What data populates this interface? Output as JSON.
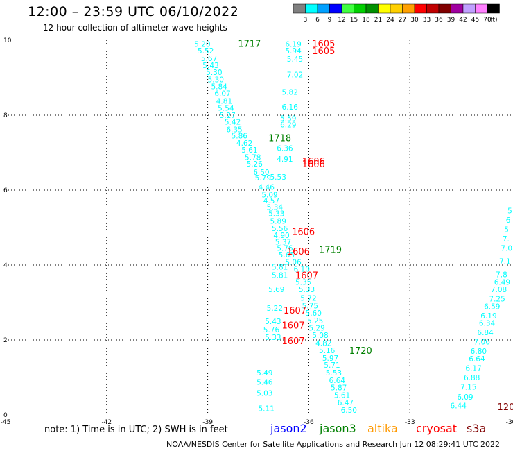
{
  "header": {
    "title": "12:00 – 23:59 UTC 06/10/2022",
    "subtitle": "12 hour collection of altimeter wave heights",
    "colorbar_unit": "(ft)"
  },
  "colorbar": [
    {
      "label": "3",
      "color": "#808080"
    },
    {
      "label": "6",
      "color": "#00ffff"
    },
    {
      "label": "9",
      "color": "#00a0ff"
    },
    {
      "label": "12",
      "color": "#0000ff"
    },
    {
      "label": "15",
      "color": "#40ff40"
    },
    {
      "label": "18",
      "color": "#00d000"
    },
    {
      "label": "21",
      "color": "#009000"
    },
    {
      "label": "24",
      "color": "#ffff00"
    },
    {
      "label": "27",
      "color": "#ffd000"
    },
    {
      "label": "30",
      "color": "#ffa000"
    },
    {
      "label": "33",
      "color": "#ff0000"
    },
    {
      "label": "36",
      "color": "#c00000"
    },
    {
      "label": "39",
      "color": "#800000"
    },
    {
      "label": "42",
      "color": "#a000a0"
    },
    {
      "label": "45",
      "color": "#c0a0ff"
    },
    {
      "label": "70",
      "color": "#ff80ff"
    },
    {
      "label": "",
      "color": "#000000"
    }
  ],
  "footer": {
    "note": "note:  1) Time is in UTC;  2) SWH is in feet",
    "satellites": [
      {
        "name": "jason2",
        "color": "#0000ff"
      },
      {
        "name": "jason3",
        "color": "#008000"
      },
      {
        "name": "altika",
        "color": "#ff9900"
      },
      {
        "name": "cryosat",
        "color": "#ff0000"
      },
      {
        "name": "s3a",
        "color": "#800000"
      }
    ],
    "credit": "NOAA/NESDIS Center for Satellite Applications and Research    Jun 12 08:29:41 UTC 2022"
  },
  "chart_data": {
    "type": "scatter",
    "xlim": [
      -45,
      -30
    ],
    "ylim": [
      0,
      10
    ],
    "xticks": [
      "-45",
      "-42",
      "-39",
      "-36",
      "-33",
      "-30"
    ],
    "yticks": [
      "0",
      "2",
      "4",
      "6",
      "8",
      "10"
    ],
    "grid": true,
    "wave_color": "#00ffff",
    "track_colors": {
      "jason3": "#008000",
      "cryosat": "#ff0000",
      "s3a": "#800000"
    },
    "wave_labels": [
      {
        "x": -39.4,
        "y": 9.9,
        "v": "5.20"
      },
      {
        "x": -39.3,
        "y": 9.72,
        "v": "5.52"
      },
      {
        "x": -39.2,
        "y": 9.52,
        "v": "5.67"
      },
      {
        "x": -39.15,
        "y": 9.33,
        "v": "5.43"
      },
      {
        "x": -39.05,
        "y": 9.15,
        "v": "5.30"
      },
      {
        "x": -39.0,
        "y": 8.95,
        "v": "5.30"
      },
      {
        "x": -38.9,
        "y": 8.77,
        "v": "5.84"
      },
      {
        "x": -38.8,
        "y": 8.58,
        "v": "6.07"
      },
      {
        "x": -38.75,
        "y": 8.38,
        "v": "4.81"
      },
      {
        "x": -38.7,
        "y": 8.19,
        "v": "5.54"
      },
      {
        "x": -38.65,
        "y": 8.0,
        "v": "5.27"
      },
      {
        "x": -38.5,
        "y": 7.82,
        "v": "5.42"
      },
      {
        "x": -38.45,
        "y": 7.62,
        "v": "6.35"
      },
      {
        "x": -38.3,
        "y": 7.45,
        "v": "5.86"
      },
      {
        "x": -38.15,
        "y": 7.26,
        "v": "4.62"
      },
      {
        "x": -38.0,
        "y": 7.07,
        "v": "5.61"
      },
      {
        "x": -37.9,
        "y": 6.88,
        "v": "5.78"
      },
      {
        "x": -37.85,
        "y": 6.7,
        "v": "5.26"
      },
      {
        "x": -37.65,
        "y": 6.48,
        "v": "6.50"
      },
      {
        "x": -37.6,
        "y": 6.33,
        "v": "5.79"
      },
      {
        "x": -37.5,
        "y": 6.08,
        "v": "4.46"
      },
      {
        "x": -37.4,
        "y": 5.88,
        "v": "5.09"
      },
      {
        "x": -37.35,
        "y": 5.72,
        "v": "4.57"
      },
      {
        "x": -37.25,
        "y": 5.55,
        "v": "5.34"
      },
      {
        "x": -37.2,
        "y": 5.38,
        "v": "5.33"
      },
      {
        "x": -37.15,
        "y": 5.18,
        "v": "5.89"
      },
      {
        "x": -37.1,
        "y": 4.98,
        "v": "5.56"
      },
      {
        "x": -37.05,
        "y": 4.8,
        "v": "4.90"
      },
      {
        "x": -37.0,
        "y": 4.62,
        "v": "5.37"
      },
      {
        "x": -36.95,
        "y": 4.45,
        "v": "5.76"
      },
      {
        "x": -36.9,
        "y": 4.28,
        "v": "5.65"
      },
      {
        "x": -36.7,
        "y": 4.08,
        "v": "5.06"
      },
      {
        "x": -37.1,
        "y": 3.95,
        "v": "5.81"
      },
      {
        "x": -37.1,
        "y": 3.73,
        "v": "5.81"
      },
      {
        "x": -36.45,
        "y": 3.9,
        "v": "6.10"
      },
      {
        "x": -36.4,
        "y": 3.55,
        "v": "5.35"
      },
      {
        "x": -36.3,
        "y": 3.35,
        "v": "5.33"
      },
      {
        "x": -37.2,
        "y": 3.35,
        "v": "5.69"
      },
      {
        "x": -36.25,
        "y": 3.12,
        "v": "5.72"
      },
      {
        "x": -36.2,
        "y": 2.92,
        "v": "5.75"
      },
      {
        "x": -36.1,
        "y": 2.72,
        "v": "5.60"
      },
      {
        "x": -36.05,
        "y": 2.52,
        "v": "5.25"
      },
      {
        "x": -36.0,
        "y": 2.32,
        "v": "5.29"
      },
      {
        "x": -35.9,
        "y": 2.13,
        "v": "5.08"
      },
      {
        "x": -37.25,
        "y": 2.85,
        "v": "5.22"
      },
      {
        "x": -37.3,
        "y": 2.5,
        "v": "5.43"
      },
      {
        "x": -37.35,
        "y": 2.28,
        "v": "5.76"
      },
      {
        "x": -37.3,
        "y": 2.07,
        "v": "5.33"
      },
      {
        "x": -35.8,
        "y": 1.92,
        "v": "4.82"
      },
      {
        "x": -35.7,
        "y": 1.72,
        "v": "5.16"
      },
      {
        "x": -35.6,
        "y": 1.52,
        "v": "5.97"
      },
      {
        "x": -35.55,
        "y": 1.33,
        "v": "5.71"
      },
      {
        "x": -35.5,
        "y": 1.13,
        "v": "5.53"
      },
      {
        "x": -35.4,
        "y": 0.93,
        "v": "6.64"
      },
      {
        "x": -35.35,
        "y": 0.73,
        "v": "5.87"
      },
      {
        "x": -35.25,
        "y": 0.53,
        "v": "5.61"
      },
      {
        "x": -35.15,
        "y": 0.33,
        "v": "6.47"
      },
      {
        "x": -35.05,
        "y": 0.13,
        "v": "6.50"
      },
      {
        "x": -37.55,
        "y": 1.13,
        "v": "5.49"
      },
      {
        "x": -37.55,
        "y": 0.88,
        "v": "5.46"
      },
      {
        "x": -37.55,
        "y": 0.58,
        "v": "5.03"
      },
      {
        "x": -37.5,
        "y": 0.18,
        "v": "5.11"
      },
      {
        "x": -36.7,
        "y": 9.9,
        "v": "6.19"
      },
      {
        "x": -36.7,
        "y": 9.72,
        "v": "5.94"
      },
      {
        "x": -36.65,
        "y": 9.5,
        "v": "5.45"
      },
      {
        "x": -36.65,
        "y": 9.08,
        "v": "7.02"
      },
      {
        "x": -36.8,
        "y": 8.62,
        "v": "5.82"
      },
      {
        "x": -36.8,
        "y": 8.22,
        "v": "6.16"
      },
      {
        "x": -36.85,
        "y": 7.92,
        "v": "5.59"
      },
      {
        "x": -36.85,
        "y": 7.75,
        "v": "6.29"
      },
      {
        "x": -36.95,
        "y": 7.12,
        "v": "6.36"
      },
      {
        "x": -36.95,
        "y": 6.83,
        "v": "4.91"
      },
      {
        "x": -37.15,
        "y": 6.35,
        "v": "5.53"
      },
      {
        "x": -30.1,
        "y": 5.45,
        "v": "5"
      },
      {
        "x": -30.15,
        "y": 5.2,
        "v": "6"
      },
      {
        "x": -30.2,
        "y": 4.95,
        "v": "5"
      },
      {
        "x": -30.25,
        "y": 4.7,
        "v": "7."
      },
      {
        "x": -30.3,
        "y": 4.45,
        "v": "7.0"
      },
      {
        "x": -30.35,
        "y": 4.1,
        "v": "7.1"
      },
      {
        "x": -30.45,
        "y": 3.75,
        "v": "7.8"
      },
      {
        "x": -30.5,
        "y": 3.55,
        "v": "6.49"
      },
      {
        "x": -30.6,
        "y": 3.35,
        "v": "7.08"
      },
      {
        "x": -30.65,
        "y": 3.1,
        "v": "7.25"
      },
      {
        "x": -30.8,
        "y": 2.9,
        "v": "6.59"
      },
      {
        "x": -30.9,
        "y": 2.65,
        "v": "6.19"
      },
      {
        "x": -30.95,
        "y": 2.45,
        "v": "6.34"
      },
      {
        "x": -31.0,
        "y": 2.2,
        "v": "6.84"
      },
      {
        "x": -31.1,
        "y": 1.95,
        "v": "7.06"
      },
      {
        "x": -31.2,
        "y": 1.7,
        "v": "6.80"
      },
      {
        "x": -31.25,
        "y": 1.5,
        "v": "6.64"
      },
      {
        "x": -31.35,
        "y": 1.25,
        "v": "6.17"
      },
      {
        "x": -31.4,
        "y": 1.0,
        "v": "6.88"
      },
      {
        "x": -31.5,
        "y": 0.75,
        "v": "7.15"
      },
      {
        "x": -31.6,
        "y": 0.48,
        "v": "6.09"
      },
      {
        "x": -31.8,
        "y": 0.25,
        "v": "6.44"
      }
    ],
    "time_labels": [
      {
        "x": -38.1,
        "y": 9.92,
        "v": "1717",
        "sat": "jason3"
      },
      {
        "x": -37.2,
        "y": 7.4,
        "v": "1718",
        "sat": "jason3"
      },
      {
        "x": -35.7,
        "y": 4.42,
        "v": "1719",
        "sat": "jason3"
      },
      {
        "x": -34.8,
        "y": 1.72,
        "v": "1720",
        "sat": "jason3"
      },
      {
        "x": -35.9,
        "y": 9.92,
        "v": "1605",
        "sat": "cryosat"
      },
      {
        "x": -35.9,
        "y": 9.72,
        "v": "1605",
        "sat": "cryosat"
      },
      {
        "x": -36.2,
        "y": 6.78,
        "v": "1606",
        "sat": "cryosat"
      },
      {
        "x": -36.2,
        "y": 6.7,
        "v": "1606",
        "sat": "cryosat"
      },
      {
        "x": -36.5,
        "y": 4.9,
        "v": "1606",
        "sat": "cryosat"
      },
      {
        "x": -36.65,
        "y": 4.37,
        "v": "1606",
        "sat": "cryosat"
      },
      {
        "x": -36.4,
        "y": 3.73,
        "v": "1607",
        "sat": "cryosat"
      },
      {
        "x": -36.75,
        "y": 2.8,
        "v": "1607",
        "sat": "cryosat"
      },
      {
        "x": -36.8,
        "y": 2.4,
        "v": "1607",
        "sat": "cryosat"
      },
      {
        "x": -36.8,
        "y": 1.98,
        "v": "1607",
        "sat": "cryosat"
      },
      {
        "x": -30.4,
        "y": 0.22,
        "v": "120",
        "sat": "s3a"
      }
    ]
  }
}
